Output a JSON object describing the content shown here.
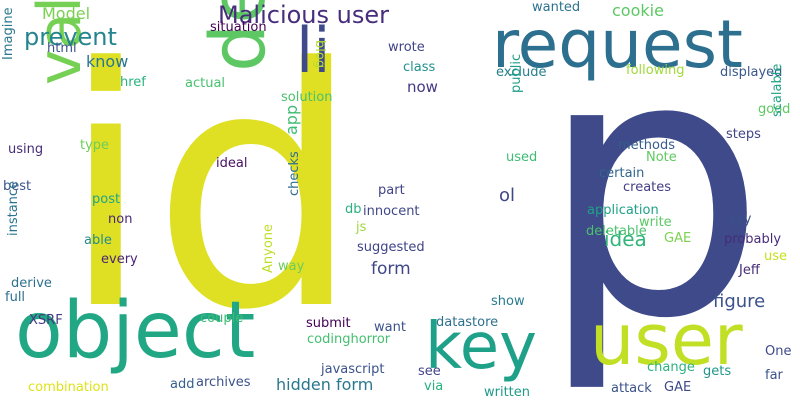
{
  "words": [
    {
      "text": "id",
      "color": "#dfe024"
    },
    {
      "text": "p",
      "color": "#3e4a89"
    },
    {
      "text": "request",
      "color": "#2c6f8e"
    },
    {
      "text": "object",
      "color": "#22a784"
    },
    {
      "text": "delete",
      "color": "#5dc863"
    },
    {
      "text": "value",
      "color": "#75d054"
    },
    {
      "text": "user",
      "color": "#c0df25"
    },
    {
      "text": "key",
      "color": "#1fa088"
    },
    {
      "text": "li",
      "color": "#3e4a89"
    },
    {
      "text": "Malicious user",
      "color": "#472d7b"
    },
    {
      "text": "prevent",
      "color": "#25858e"
    },
    {
      "text": "Model",
      "color": "#7ad151"
    },
    {
      "text": "cookie",
      "color": "#5cc863"
    },
    {
      "text": "wanted",
      "color": "#2c728e"
    },
    {
      "text": "know",
      "color": "#2a768e"
    },
    {
      "text": "situation",
      "color": "#440154"
    },
    {
      "text": "html",
      "color": "#3b528b"
    },
    {
      "text": "blog",
      "color": "#b5de2b"
    },
    {
      "text": "wrote",
      "color": "#414487"
    },
    {
      "text": "class",
      "color": "#21918c"
    },
    {
      "text": "Imagine",
      "color": "#2a788e"
    },
    {
      "text": "href",
      "color": "#2ab07f"
    },
    {
      "text": "actual",
      "color": "#48c16e"
    },
    {
      "text": "now",
      "color": "#453781"
    },
    {
      "text": "exclude",
      "color": "#277f8e"
    },
    {
      "text": "following",
      "color": "#a0da39"
    },
    {
      "text": "displayed",
      "color": "#38588c"
    },
    {
      "text": "solution",
      "color": "#4ac16d"
    },
    {
      "text": "app",
      "color": "#3fbc73"
    },
    {
      "text": "public",
      "color": "#1f9e89"
    },
    {
      "text": "good",
      "color": "#5ec962"
    },
    {
      "text": "type",
      "color": "#6ece58"
    },
    {
      "text": "using",
      "color": "#472c7a"
    },
    {
      "text": "methods",
      "color": "#365c8d"
    },
    {
      "text": "steps",
      "color": "#404588"
    },
    {
      "text": "Note",
      "color": "#60ca60"
    },
    {
      "text": "scalable",
      "color": "#20a386"
    },
    {
      "text": "ideal",
      "color": "#471063"
    },
    {
      "text": "used",
      "color": "#3dbc74"
    },
    {
      "text": "certain",
      "color": "#31668e"
    },
    {
      "text": "best",
      "color": "#3b528b"
    },
    {
      "text": "creates",
      "color": "#433e85"
    },
    {
      "text": "part",
      "color": "#404387"
    },
    {
      "text": "post",
      "color": "#20a486"
    },
    {
      "text": "checks",
      "color": "#2e6e8e"
    },
    {
      "text": "db",
      "color": "#2cb17e"
    },
    {
      "text": "innocent",
      "color": "#3f4788"
    },
    {
      "text": "application",
      "color": "#1fa187"
    },
    {
      "text": "non",
      "color": "#482878"
    },
    {
      "text": "instance",
      "color": "#2b748e"
    },
    {
      "text": "write",
      "color": "#5ac864"
    },
    {
      "text": "js",
      "color": "#9dd93b"
    },
    {
      "text": "deletable",
      "color": "#4ac16d"
    },
    {
      "text": "say",
      "color": "#3b528b"
    },
    {
      "text": "able",
      "color": "#228c8d"
    },
    {
      "text": "idea",
      "color": "#31b57b"
    },
    {
      "text": "GAE",
      "color": "#7cd250"
    },
    {
      "text": "probably",
      "color": "#472c7a"
    },
    {
      "text": "suggested",
      "color": "#404387"
    },
    {
      "text": "ol",
      "color": "#3f4788"
    },
    {
      "text": "every",
      "color": "#482576"
    },
    {
      "text": "derive",
      "color": "#2d718e"
    },
    {
      "text": "use",
      "color": "#c8e020"
    },
    {
      "text": "way",
      "color": "#6ccd5a"
    },
    {
      "text": "Jeff",
      "color": "#472c7a"
    },
    {
      "text": "form",
      "color": "#3f4788"
    },
    {
      "text": "full",
      "color": "#2d708e"
    },
    {
      "text": "figure",
      "color": "#3b528b"
    },
    {
      "text": "show",
      "color": "#287c8e"
    },
    {
      "text": "Anyone",
      "color": "#bddf26"
    },
    {
      "text": "XSRF",
      "color": "#443983"
    },
    {
      "text": "couple",
      "color": "#3dbc74"
    },
    {
      "text": "submit",
      "color": "#440154"
    },
    {
      "text": "datastore",
      "color": "#2d708e"
    },
    {
      "text": "want",
      "color": "#3b528b"
    },
    {
      "text": "codinghorror",
      "color": "#44bf70"
    },
    {
      "text": "One",
      "color": "#3e4989"
    },
    {
      "text": "javascript",
      "color": "#3b528b"
    },
    {
      "text": "change",
      "color": "#2db27d"
    },
    {
      "text": "see",
      "color": "#404387"
    },
    {
      "text": "hidden form",
      "color": "#2a788e"
    },
    {
      "text": "gets",
      "color": "#1f968b"
    },
    {
      "text": "combination",
      "color": "#dde318"
    },
    {
      "text": "add",
      "color": "#355f8d"
    },
    {
      "text": "archives",
      "color": "#3b528b"
    },
    {
      "text": "via",
      "color": "#2ab07f"
    },
    {
      "text": "attack",
      "color": "#3b528b"
    },
    {
      "text": "GAE",
      "color": "#3e4989"
    },
    {
      "text": "far",
      "color": "#3b528b"
    },
    {
      "text": "written",
      "color": "#1f9a8a"
    }
  ]
}
